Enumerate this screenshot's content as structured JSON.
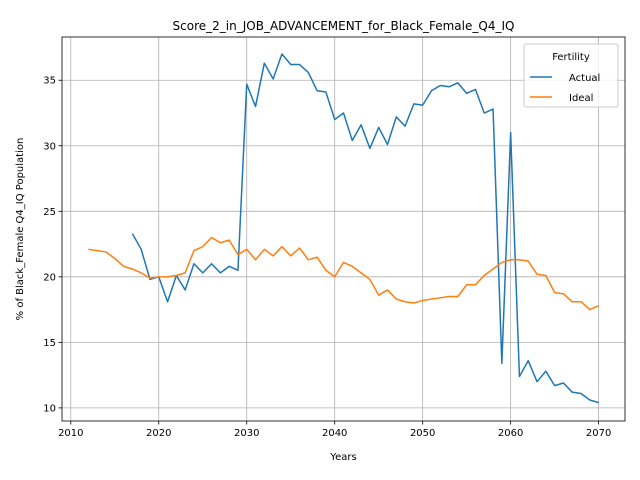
{
  "chart_data": {
    "type": "line",
    "title": "Score_2_in_JOB_ADVANCEMENT_for_Black_Female_Q4_IQ",
    "xlabel": "Years",
    "ylabel": "% of Black_Female Q4_IQ Population",
    "xlim": [
      2009,
      2073
    ],
    "ylim": [
      9.0,
      38.3
    ],
    "xticks": [
      2010,
      2020,
      2030,
      2040,
      2050,
      2060,
      2070
    ],
    "yticks": [
      10,
      15,
      20,
      25,
      30,
      35
    ],
    "grid": true,
    "legend": {
      "title": "Fertility",
      "placement": "top-right"
    },
    "series": [
      {
        "name": "Actual",
        "color": "#1f77b4",
        "x": [
          2017,
          2018,
          2019,
          2020,
          2021,
          2022,
          2023,
          2024,
          2025,
          2026,
          2027,
          2028,
          2029,
          2030,
          2031,
          2032,
          2033,
          2034,
          2035,
          2036,
          2037,
          2038,
          2039,
          2040,
          2041,
          2042,
          2043,
          2044,
          2045,
          2046,
          2047,
          2048,
          2049,
          2050,
          2051,
          2052,
          2053,
          2054,
          2055,
          2056,
          2057,
          2058,
          2059,
          2060,
          2061,
          2062,
          2063,
          2064,
          2065,
          2066,
          2067,
          2068,
          2069,
          2070
        ],
        "y": [
          23.3,
          22.1,
          19.8,
          20.0,
          18.1,
          20.1,
          19.0,
          21.0,
          20.3,
          21.0,
          20.3,
          20.8,
          20.5,
          34.7,
          33.0,
          36.3,
          35.1,
          37.0,
          36.2,
          36.2,
          35.6,
          34.2,
          34.1,
          32.0,
          32.5,
          30.4,
          31.6,
          29.8,
          31.4,
          30.1,
          32.2,
          31.5,
          33.2,
          33.1,
          34.2,
          34.6,
          34.5,
          34.8,
          34.0,
          34.3,
          32.5,
          32.8,
          13.4,
          31.0,
          12.4,
          13.6,
          12.0,
          12.8,
          11.7,
          11.9,
          11.2,
          11.1,
          10.6,
          10.4
        ]
      },
      {
        "name": "Ideal",
        "color": "#ff7f0e",
        "x": [
          2012,
          2013,
          2014,
          2015,
          2016,
          2017,
          2018,
          2019,
          2020,
          2021,
          2022,
          2023,
          2024,
          2025,
          2026,
          2027,
          2028,
          2029,
          2030,
          2031,
          2032,
          2033,
          2034,
          2035,
          2036,
          2037,
          2038,
          2039,
          2040,
          2041,
          2042,
          2043,
          2044,
          2045,
          2046,
          2047,
          2048,
          2049,
          2050,
          2051,
          2052,
          2053,
          2054,
          2055,
          2056,
          2057,
          2058,
          2059,
          2060,
          2061,
          2062,
          2063,
          2064,
          2065,
          2066,
          2067,
          2068,
          2069,
          2070
        ],
        "y": [
          22.1,
          22.0,
          21.9,
          21.4,
          20.8,
          20.6,
          20.3,
          19.9,
          20.0,
          20.0,
          20.1,
          20.3,
          22.0,
          22.3,
          23.0,
          22.6,
          22.8,
          21.7,
          22.1,
          21.3,
          22.1,
          21.6,
          22.3,
          21.6,
          22.2,
          21.3,
          21.5,
          20.5,
          20.0,
          21.1,
          20.8,
          20.3,
          19.8,
          18.6,
          19.0,
          18.3,
          18.1,
          18.0,
          18.2,
          18.3,
          18.4,
          18.5,
          18.5,
          19.4,
          19.4,
          20.1,
          20.6,
          21.1,
          21.3,
          21.3,
          21.2,
          20.2,
          20.1,
          18.8,
          18.7,
          18.1,
          18.1,
          17.5,
          17.8
        ]
      }
    ]
  }
}
